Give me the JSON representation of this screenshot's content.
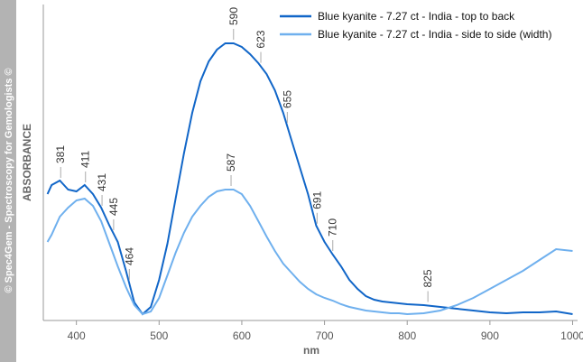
{
  "chart_data": {
    "type": "line",
    "watermark": "© Spec4Gem - Spectroscopy for Gemologists ©",
    "x_label": "nm",
    "y_label": "ABSORBANCE",
    "x": [
      365,
      370,
      380,
      390,
      400,
      410,
      420,
      430,
      440,
      450,
      460,
      470,
      480,
      490,
      500,
      510,
      520,
      530,
      540,
      550,
      560,
      570,
      580,
      590,
      600,
      610,
      620,
      630,
      640,
      650,
      660,
      670,
      680,
      690,
      700,
      710,
      720,
      730,
      740,
      750,
      760,
      770,
      780,
      790,
      800,
      820,
      840,
      860,
      880,
      900,
      920,
      940,
      960,
      980,
      1000
    ],
    "series": [
      {
        "name": "Blue kyanite - 7.27 ct - India - top to back",
        "color": "#1166c8",
        "values": [
          140,
          150,
          155,
          145,
          143,
          150,
          140,
          125,
          105,
          87,
          55,
          20,
          7,
          15,
          45,
          85,
          135,
          185,
          230,
          265,
          287,
          300,
          307,
          307,
          303,
          295,
          285,
          273,
          255,
          230,
          200,
          170,
          140,
          105,
          87,
          73,
          60,
          45,
          35,
          27,
          23,
          21,
          20,
          19,
          18,
          17,
          15,
          13,
          11,
          9,
          8,
          9,
          9,
          10,
          7
        ],
        "peaks": [
          381,
          411,
          431,
          445,
          464,
          590,
          623,
          655,
          691,
          710,
          825
        ]
      },
      {
        "name": "Blue kyanite - 7.27 ct - India - side to side (width)",
        "color": "#6fb0ee",
        "values": [
          87,
          95,
          115,
          125,
          133,
          135,
          127,
          110,
          85,
          60,
          37,
          17,
          7,
          10,
          25,
          50,
          75,
          97,
          115,
          127,
          137,
          143,
          145,
          145,
          140,
          127,
          110,
          93,
          77,
          63,
          53,
          43,
          35,
          29,
          25,
          22,
          18,
          15,
          13,
          11,
          10,
          9,
          8,
          8,
          7,
          8,
          11,
          17,
          25,
          35,
          45,
          55,
          67,
          79,
          77
        ],
        "peaks": [
          587
        ]
      }
    ],
    "xlim": [
      360,
      1006
    ],
    "ylim": [
      0,
      350
    ],
    "xticks": [
      400,
      500,
      600,
      700,
      800,
      900,
      1000
    ]
  }
}
